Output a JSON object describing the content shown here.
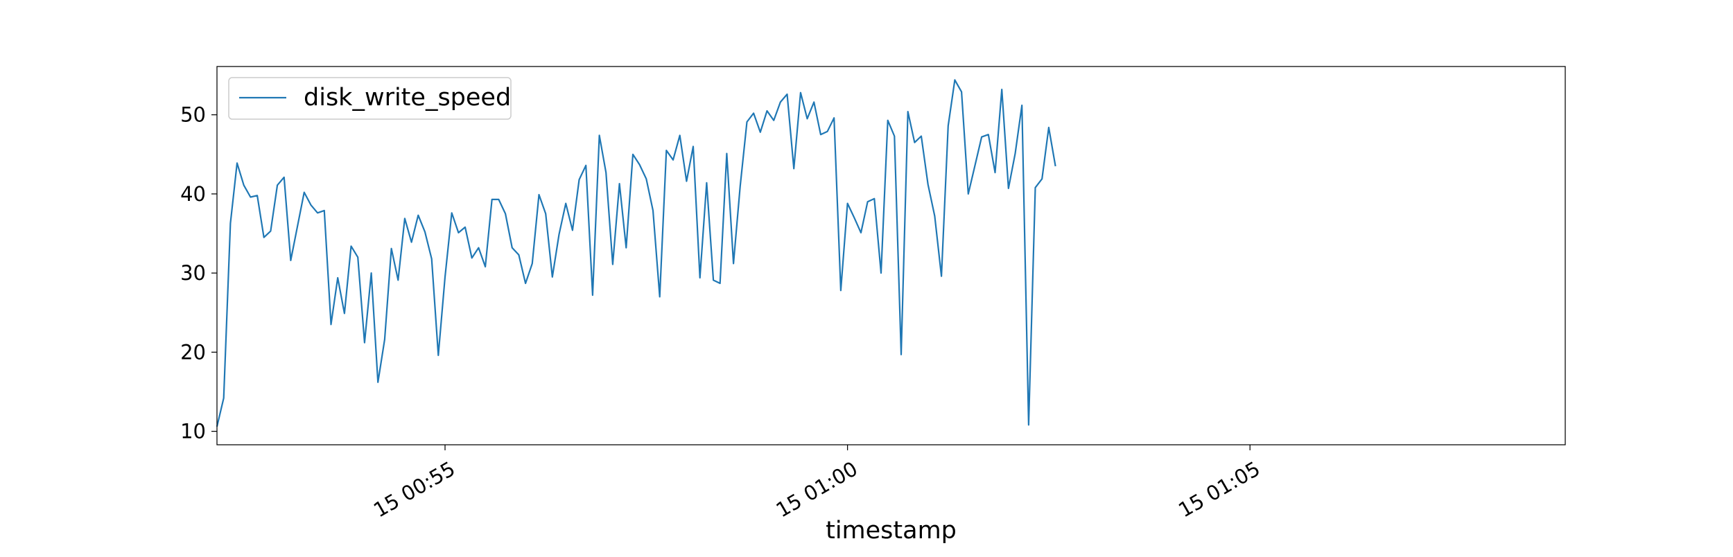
{
  "chart_data": {
    "type": "line",
    "title": "",
    "xlabel": "timestamp",
    "ylabel": "",
    "x_start": "2024-01-15 00:52:10",
    "x_step_seconds": 5,
    "xlim": [
      "2024-01-15 00:52:10",
      "2024-01-15 01:08:55"
    ],
    "ylim": [
      8.3,
      56.1
    ],
    "y_ticks": [
      10,
      20,
      30,
      40,
      50
    ],
    "x_ticks": [
      {
        "value": "2024-01-15 00:55:00",
        "label": "15 00:55"
      },
      {
        "value": "2024-01-15 01:00:00",
        "label": "15 01:00"
      },
      {
        "value": "2024-01-15 01:05:00",
        "label": "15 01:05"
      }
    ],
    "grid": false,
    "legend": "top-left",
    "series": [
      {
        "name": "disk_write_speed",
        "color": "#1f77b4",
        "values": [
          10.6,
          14.2,
          36.3,
          43.9,
          41.1,
          39.6,
          39.8,
          34.5,
          35.3,
          41.1,
          42.1,
          31.6,
          35.9,
          40.2,
          38.6,
          37.6,
          37.9,
          23.5,
          29.4,
          24.9,
          33.4,
          32.0,
          21.2,
          30.0,
          16.2,
          21.6,
          33.1,
          29.1,
          36.9,
          33.9,
          37.3,
          35.2,
          31.8,
          19.6,
          29.5,
          37.6,
          35.1,
          35.8,
          31.9,
          33.2,
          30.8,
          39.3,
          39.3,
          37.5,
          33.2,
          32.3,
          28.7,
          31.2,
          39.9,
          37.5,
          29.5,
          34.9,
          38.8,
          35.4,
          41.8,
          43.6,
          27.2,
          47.4,
          42.7,
          31.1,
          41.3,
          33.2,
          45.0,
          43.7,
          41.9,
          37.9,
          27.0,
          45.5,
          44.3,
          47.4,
          41.6,
          46.0,
          29.4,
          41.4,
          29.1,
          28.7,
          45.1,
          31.2,
          41.0,
          49.1,
          50.2,
          47.8,
          50.5,
          49.3,
          51.6,
          52.6,
          43.2,
          52.8,
          49.5,
          51.6,
          47.5,
          47.9,
          49.6,
          27.8,
          38.8,
          37.0,
          35.1,
          39.0,
          39.4,
          30.0,
          49.3,
          47.3,
          19.7,
          50.4,
          46.5,
          47.3,
          41.2,
          37.2,
          29.6,
          48.6,
          54.4,
          52.9,
          40.0,
          43.6,
          47.2,
          47.5,
          42.7,
          53.2,
          40.7,
          45.1,
          51.2,
          10.8,
          40.8,
          41.9,
          48.4,
          43.5
        ]
      }
    ]
  }
}
